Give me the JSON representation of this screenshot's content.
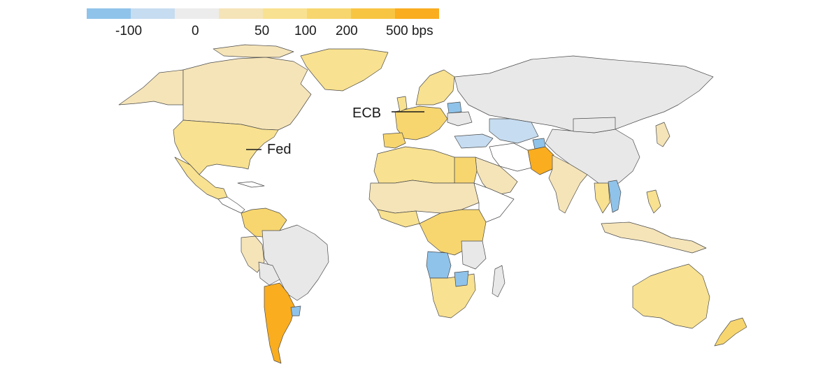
{
  "legend": {
    "colors": [
      "#8fc3ea",
      "#c6dcf0",
      "#ececec",
      "#f5e4b8",
      "#f8e190",
      "#f7d66f",
      "#f8c543",
      "#f9ad1f"
    ],
    "ticks": [
      "-100",
      "0",
      "50",
      "100",
      "200",
      "500 bps"
    ]
  },
  "annotations": {
    "fed": "Fed",
    "ecb": "ECB"
  },
  "map_colors": {
    "no_data": "#ffffff",
    "zero": "#e8e8e8",
    "cut_small": "#c6dcf0",
    "cut_large": "#8fc3ea",
    "hike_50": "#f5e4b8",
    "hike_100": "#f8e190",
    "hike_200": "#f7d66f",
    "hike_500": "#f9ad1f"
  }
}
